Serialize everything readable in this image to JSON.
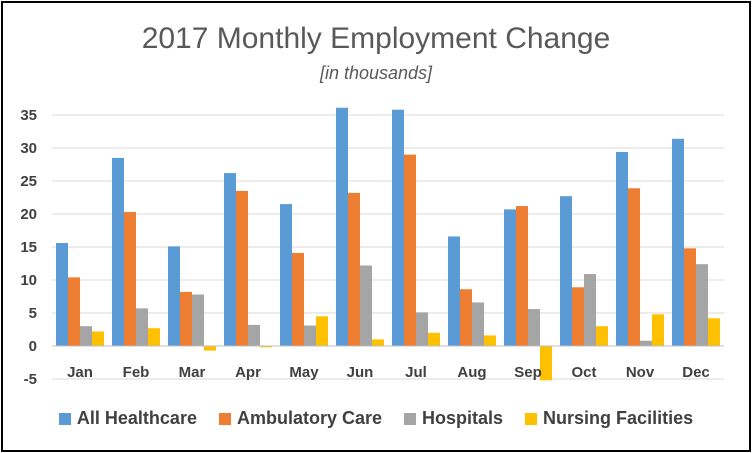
{
  "chart_data": {
    "type": "bar",
    "title": "2017 Monthly Employment Change",
    "subtitle": "[in thousands]",
    "xlabel": "",
    "ylabel": "",
    "ylim": [
      -5,
      35
    ],
    "yticks": [
      35,
      30,
      25,
      20,
      15,
      10,
      5,
      0,
      -5
    ],
    "grid": true,
    "legend_position": "bottom",
    "categories": [
      "Jan",
      "Feb",
      "Mar",
      "Apr",
      "May",
      "Jun",
      "Jul",
      "Aug",
      "Sep",
      "Oct",
      "Nov",
      "Dec"
    ],
    "series": [
      {
        "name": "All Healthcare",
        "color": "#5B9BD5",
        "values": [
          15.6,
          28.5,
          15.1,
          26.2,
          21.5,
          36.1,
          35.8,
          16.6,
          20.7,
          22.7,
          29.4,
          31.4
        ]
      },
      {
        "name": "Ambulatory Care",
        "color": "#ED7D31",
        "values": [
          10.4,
          20.3,
          8.2,
          23.5,
          14.1,
          23.2,
          29.0,
          8.6,
          21.2,
          8.9,
          23.9,
          14.8
        ]
      },
      {
        "name": "Hospitals",
        "color": "#A5A5A5",
        "values": [
          3.0,
          5.7,
          7.8,
          3.2,
          3.1,
          12.2,
          5.1,
          6.6,
          5.6,
          10.9,
          0.8,
          12.4
        ]
      },
      {
        "name": "Nursing Facilities",
        "color": "#FFC000",
        "values": [
          2.2,
          2.7,
          -0.7,
          -0.2,
          4.5,
          1.0,
          2.0,
          1.6,
          -5.2,
          3.0,
          4.8,
          4.2
        ]
      }
    ]
  }
}
